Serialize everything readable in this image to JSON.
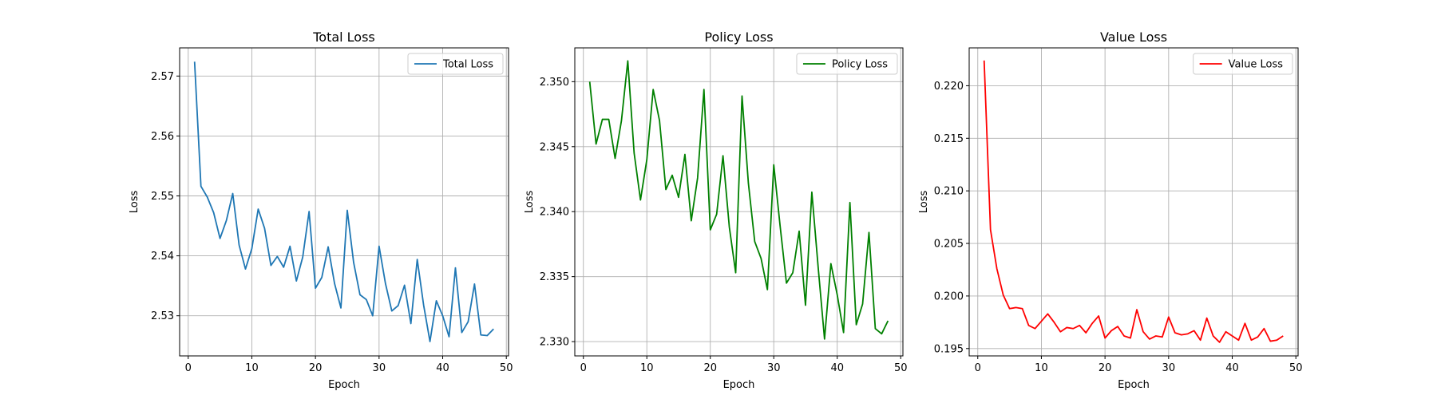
{
  "figure": {
    "panels": [
      {
        "title": "Total Loss",
        "xlabel": "Epoch",
        "ylabel": "Loss",
        "legend": "Total Loss"
      },
      {
        "title": "Policy Loss",
        "xlabel": "Epoch",
        "ylabel": "Loss",
        "legend": "Policy Loss"
      },
      {
        "title": "Value Loss",
        "xlabel": "Epoch",
        "ylabel": "Loss",
        "legend": "Value Loss"
      }
    ]
  },
  "chart_data": [
    {
      "type": "line",
      "title": "Total Loss",
      "xlabel": "Epoch",
      "ylabel": "Loss",
      "xlim": [
        -1.35,
        50.35
      ],
      "ylim": [
        2.5233,
        2.5747
      ],
      "xticks": [
        0,
        10,
        20,
        30,
        40,
        50
      ],
      "yticks": [
        2.53,
        2.54,
        2.55,
        2.56,
        2.57
      ],
      "ytick_labels": [
        "2.53",
        "2.54",
        "2.55",
        "2.56",
        "2.57"
      ],
      "grid": true,
      "legend_position": "top-right",
      "series": [
        {
          "name": "Total Loss",
          "color": "#1f77b4",
          "x": [
            1,
            2,
            3,
            4,
            5,
            6,
            7,
            8,
            9,
            10,
            11,
            12,
            13,
            14,
            15,
            16,
            17,
            18,
            19,
            20,
            21,
            22,
            23,
            24,
            25,
            26,
            27,
            28,
            29,
            30,
            31,
            32,
            33,
            34,
            35,
            36,
            37,
            38,
            39,
            40,
            41,
            42,
            43,
            44,
            45,
            46,
            47,
            48
          ],
          "values": [
            2.5724,
            2.5516,
            2.5498,
            2.5472,
            2.5429,
            2.5459,
            2.5504,
            2.5418,
            2.5378,
            2.5412,
            2.5478,
            2.5446,
            2.5384,
            2.5399,
            2.5381,
            2.5416,
            2.5358,
            2.5398,
            2.5474,
            2.5346,
            2.5364,
            2.5415,
            2.5354,
            2.5313,
            2.5476,
            2.5389,
            2.5335,
            2.5327,
            2.53,
            2.5416,
            2.5354,
            2.5308,
            2.5317,
            2.5351,
            2.5287,
            2.5394,
            2.5318,
            2.5257,
            2.5325,
            2.53,
            2.5265,
            2.538,
            2.5272,
            2.529,
            2.5353,
            2.5268,
            2.5267,
            2.5278
          ]
        }
      ]
    },
    {
      "type": "line",
      "title": "Policy Loss",
      "xlabel": "Epoch",
      "ylabel": "Loss",
      "xlim": [
        -1.35,
        50.35
      ],
      "ylim": [
        2.3289,
        2.3526
      ],
      "xticks": [
        0,
        10,
        20,
        30,
        40,
        50
      ],
      "yticks": [
        2.33,
        2.335,
        2.34,
        2.345,
        2.35
      ],
      "ytick_labels": [
        "2.330",
        "2.335",
        "2.340",
        "2.345",
        "2.350"
      ],
      "grid": true,
      "legend_position": "top-right",
      "series": [
        {
          "name": "Policy Loss",
          "color": "#008000",
          "x": [
            1,
            2,
            3,
            4,
            5,
            6,
            7,
            8,
            9,
            10,
            11,
            12,
            13,
            14,
            15,
            16,
            17,
            18,
            19,
            20,
            21,
            22,
            23,
            24,
            25,
            26,
            27,
            28,
            29,
            30,
            31,
            32,
            33,
            34,
            35,
            36,
            37,
            38,
            39,
            40,
            41,
            42,
            43,
            44,
            45,
            46,
            47,
            48
          ],
          "values": [
            2.35,
            2.3452,
            2.3471,
            2.3471,
            2.3441,
            2.347,
            2.3516,
            2.3445,
            2.3409,
            2.344,
            2.3494,
            2.347,
            2.3417,
            2.3428,
            2.3411,
            2.3444,
            2.3393,
            2.3426,
            2.3494,
            2.3386,
            2.3398,
            2.3443,
            2.3388,
            2.3353,
            2.3489,
            2.3422,
            2.3377,
            2.3364,
            2.334,
            2.3436,
            2.3389,
            2.3345,
            2.3353,
            2.3385,
            2.3328,
            2.3415,
            2.3357,
            2.3302,
            2.336,
            2.3336,
            2.3307,
            2.3407,
            2.3313,
            2.3329,
            2.3384,
            2.331,
            2.3306,
            2.3316
          ]
        }
      ]
    },
    {
      "type": "line",
      "title": "Value Loss",
      "xlabel": "Epoch",
      "ylabel": "Loss",
      "xlim": [
        -1.35,
        50.35
      ],
      "ylim": [
        0.1943,
        0.2236
      ],
      "xticks": [
        0,
        10,
        20,
        30,
        40,
        50
      ],
      "yticks": [
        0.195,
        0.2,
        0.205,
        0.21,
        0.215,
        0.22
      ],
      "ytick_labels": [
        "0.195",
        "0.200",
        "0.205",
        "0.210",
        "0.215",
        "0.220"
      ],
      "grid": true,
      "legend_position": "top-right",
      "series": [
        {
          "name": "Value Loss",
          "color": "#ff0000",
          "x": [
            1,
            2,
            3,
            4,
            5,
            6,
            7,
            8,
            9,
            10,
            11,
            12,
            13,
            14,
            15,
            16,
            17,
            18,
            19,
            20,
            21,
            22,
            23,
            24,
            25,
            26,
            27,
            28,
            29,
            30,
            31,
            32,
            33,
            34,
            35,
            36,
            37,
            38,
            39,
            40,
            41,
            42,
            43,
            44,
            45,
            46,
            47,
            48
          ],
          "values": [
            0.2224,
            0.2063,
            0.2026,
            0.2001,
            0.1988,
            0.1989,
            0.1988,
            0.1972,
            0.1969,
            0.1976,
            0.1983,
            0.1975,
            0.1966,
            0.197,
            0.1969,
            0.1972,
            0.1965,
            0.1974,
            0.1981,
            0.196,
            0.1967,
            0.1971,
            0.1962,
            0.196,
            0.1987,
            0.1966,
            0.1959,
            0.1962,
            0.1961,
            0.198,
            0.1965,
            0.1963,
            0.1964,
            0.1967,
            0.1958,
            0.1979,
            0.1962,
            0.1956,
            0.1966,
            0.1962,
            0.1958,
            0.1974,
            0.1958,
            0.1961,
            0.1969,
            0.1957,
            0.1958,
            0.1962
          ]
        }
      ]
    }
  ]
}
